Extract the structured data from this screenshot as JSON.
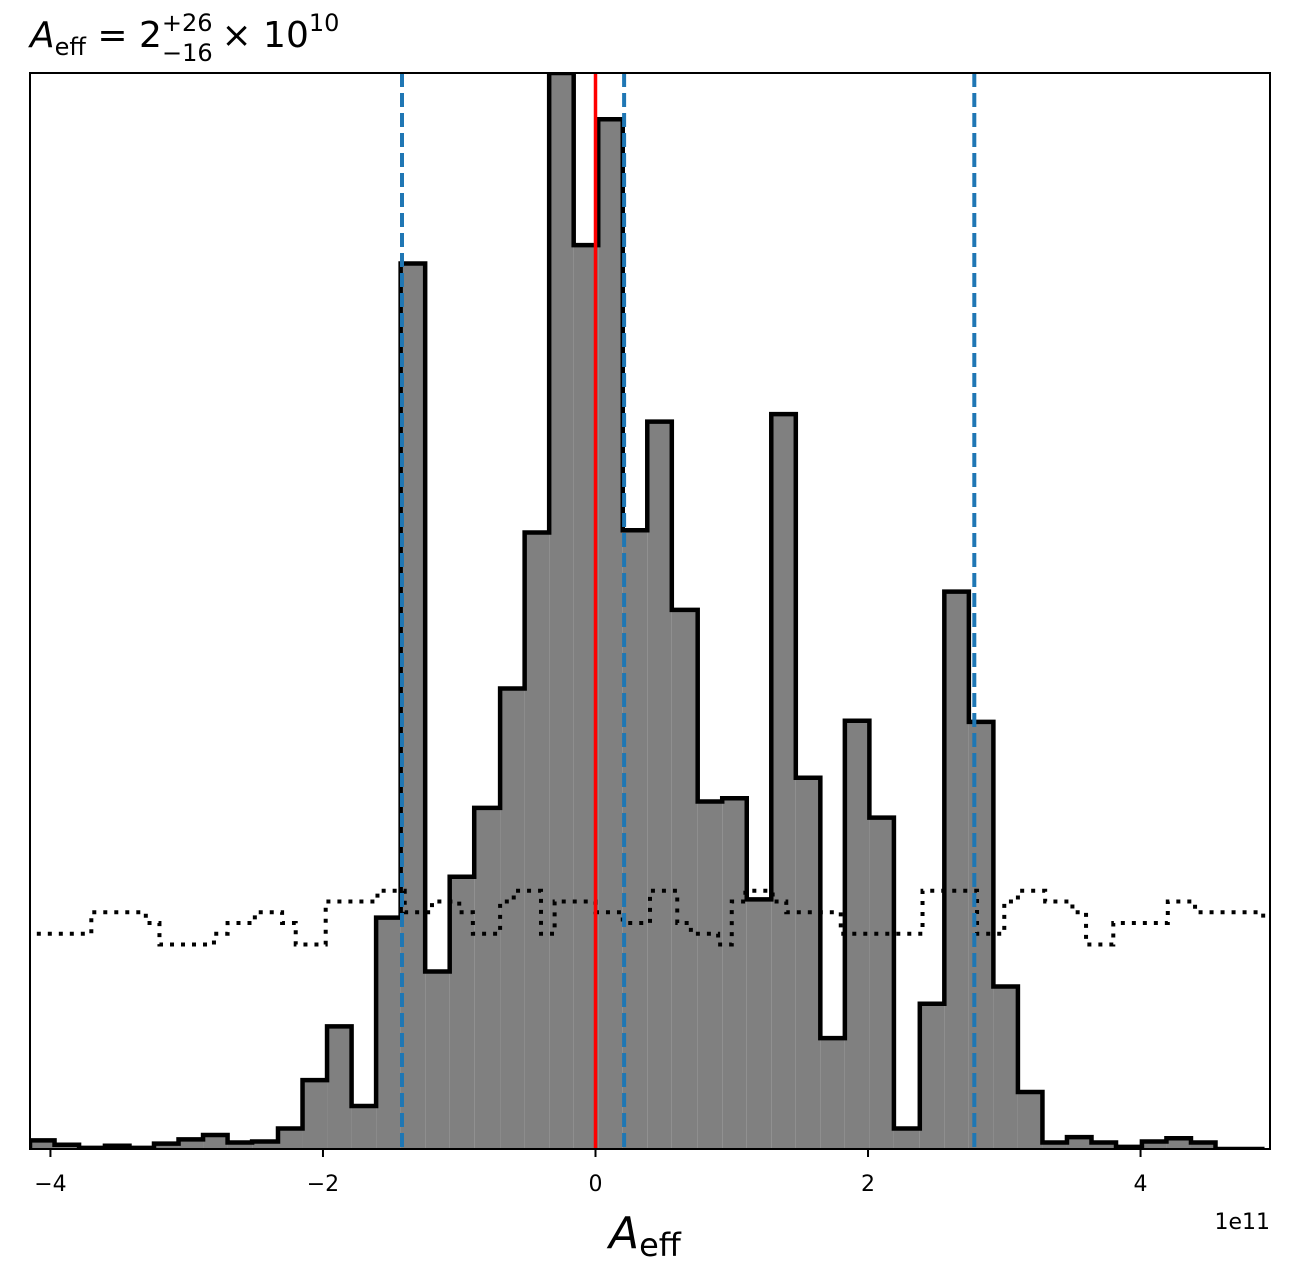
{
  "chart_data": {
    "type": "histogram",
    "title": {
      "symbol": "A",
      "symbol_sub": "eff",
      "eq": " = 2",
      "sup": "+26",
      "sub": "−16",
      "times": " × 10",
      "exp": "10"
    },
    "xlabel": {
      "symbol": "A",
      "sub": "eff"
    },
    "x_offset_label": "1e11",
    "xlim": [
      -4.15,
      4.95
    ],
    "ylim": [
      0,
      100
    ],
    "x_ticks": [
      {
        "value": -4,
        "label": "−4"
      },
      {
        "value": -2,
        "label": "−2"
      },
      {
        "value": 0,
        "label": "0"
      },
      {
        "value": 2,
        "label": "2"
      },
      {
        "value": 4,
        "label": "4"
      }
    ],
    "bin_edges": [
      -4.15,
      -3.97,
      -3.79,
      -3.6,
      -3.42,
      -3.24,
      -3.06,
      -2.88,
      -2.7,
      -2.52,
      -2.33,
      -2.15,
      -1.97,
      -1.79,
      -1.61,
      -1.43,
      -1.25,
      -1.07,
      -0.89,
      -0.7,
      -0.52,
      -0.34,
      -0.16,
      0.02,
      0.2,
      0.38,
      0.56,
      0.75,
      0.93,
      1.11,
      1.29,
      1.47,
      1.65,
      1.83,
      2.01,
      2.19,
      2.38,
      2.56,
      2.74,
      2.92,
      3.1,
      3.28,
      3.46,
      3.64,
      3.82,
      4.01,
      4.19,
      4.37,
      4.55,
      4.73,
      4.91
    ],
    "counts": [
      0.8,
      0.4,
      0.1,
      0.3,
      0.1,
      0.5,
      0.9,
      1.3,
      0.6,
      0.7,
      1.9,
      6.4,
      11.4,
      4.0,
      21.5,
      82.3,
      16.5,
      25.3,
      31.7,
      42.8,
      57.3,
      100.0,
      84.0,
      95.7,
      57.5,
      67.6,
      50.1,
      32.3,
      32.6,
      23.2,
      68.3,
      34.5,
      10.3,
      39.8,
      30.8,
      1.9,
      13.5,
      51.8,
      39.7,
      15.1,
      5.3,
      0.6,
      1.1,
      0.6,
      0.2,
      0.7,
      1.0,
      0.6,
      0.0,
      0.0
    ],
    "prior": {
      "style": "dotted",
      "x": [
        -4.1,
        -3.8,
        -3.7,
        -3.5,
        -3.3,
        -3.2,
        -3.0,
        -2.8,
        -2.7,
        -2.5,
        -2.3,
        -2.2,
        -2.0,
        -1.98,
        -1.8,
        -1.6,
        -1.4,
        -1.2,
        -1.0,
        -0.9,
        -0.7,
        -0.6,
        -0.4,
        -0.3,
        -0.1,
        0.0,
        0.2,
        0.4,
        0.6,
        0.7,
        0.9,
        1.0,
        1.1,
        1.3,
        1.4,
        1.6,
        1.8,
        1.9,
        2.1,
        2.3,
        2.4,
        2.6,
        2.8,
        3.0,
        3.1,
        3.3,
        3.5,
        3.6,
        3.8,
        4.0,
        4.2,
        4.4,
        4.6,
        4.9
      ],
      "y": [
        20,
        20,
        22,
        22,
        21,
        19,
        19,
        20,
        21,
        22,
        21,
        19,
        19,
        23,
        23,
        24,
        22,
        23,
        22,
        20,
        23,
        24,
        20,
        23,
        23,
        22,
        21,
        24,
        21,
        20,
        19,
        23,
        24,
        23,
        22,
        22,
        20,
        20,
        20,
        20,
        24,
        24,
        20,
        23,
        24,
        23,
        22,
        19,
        21,
        21,
        23,
        22,
        22,
        21
      ]
    },
    "vlines": [
      {
        "x": -1.42,
        "role": "quantile",
        "color": "#1f77b4",
        "style": "dashed"
      },
      {
        "x": 0.21,
        "role": "quantile",
        "color": "#1f77b4",
        "style": "dashed"
      },
      {
        "x": 2.78,
        "role": "quantile",
        "color": "#1f77b4",
        "style": "dashed"
      },
      {
        "x": 0.0,
        "role": "truth",
        "color": "#ff0000",
        "style": "solid"
      }
    ],
    "colors": {
      "fill": "#808080",
      "edge": "#000000",
      "quantile": "#1f77b4",
      "truth": "#ff0000"
    }
  }
}
